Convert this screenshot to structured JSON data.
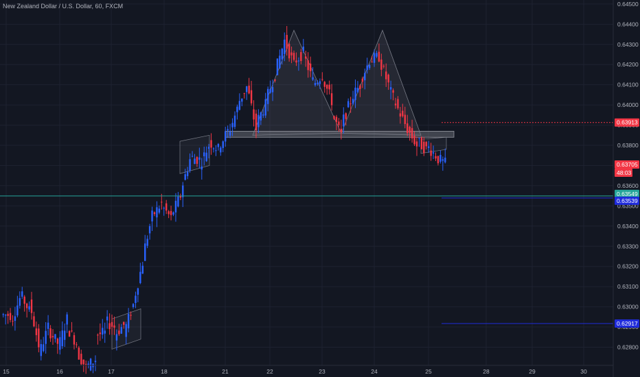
{
  "chart_data": {
    "type": "candlestick",
    "title": "New Zealand Dollar / U.S. Dollar, 60, FXCM",
    "xlabel": "",
    "ylabel": "",
    "ylim": [
      0.6271,
      0.6452
    ],
    "grid": true,
    "x_tick_labels": [
      "15",
      "16",
      "17",
      "18",
      "21",
      "22",
      "23",
      "24",
      "25",
      "28",
      "29",
      "30"
    ],
    "y_tick_labels": [
      "0.64500",
      "0.64400",
      "0.64300",
      "0.64200",
      "0.64100",
      "0.64000",
      "0.63900",
      "0.63800",
      "0.63700",
      "0.63600",
      "0.63500",
      "0.63400",
      "0.63300",
      "0.63200",
      "0.63100",
      "0.63000",
      "0.62900",
      "0.62800"
    ],
    "y_tick_values": [
      0.645,
      0.644,
      0.643,
      0.642,
      0.641,
      0.64,
      0.639,
      0.638,
      0.637,
      0.636,
      0.635,
      0.634,
      0.633,
      0.632,
      0.631,
      0.63,
      0.629,
      0.628
    ],
    "colors": {
      "background": "#131722",
      "up": "#2962ff",
      "down": "#f23645",
      "grid": "#1e2230",
      "neckline": "#9598a1",
      "level_teal": "#26a69a",
      "level_red": "#f23645",
      "level_blue": "#1f2bdb",
      "price_axis_bg": "#131722"
    },
    "price_path": [
      [
        0.6296,
        0.6296
      ],
      [
        0.6292,
        0.6304
      ],
      [
        0.6307,
        0.6298
      ],
      [
        0.6303,
        0.6281
      ],
      [
        0.6276,
        0.629
      ],
      [
        0.6289,
        0.6282
      ],
      [
        0.6279,
        0.6294
      ],
      [
        0.629,
        0.6282
      ],
      [
        0.6278,
        0.627
      ],
      [
        0.627,
        0.6274
      ],
      [
        0.6286,
        0.6287
      ],
      [
        0.6293,
        0.629
      ],
      [
        0.6286,
        0.6291
      ],
      [
        0.6287,
        0.6301
      ],
      [
        0.6302,
        0.6322
      ],
      [
        0.6325,
        0.6345
      ],
      [
        0.6345,
        0.6351
      ],
      [
        0.635,
        0.6344
      ],
      [
        0.6345,
        0.6355
      ],
      [
        0.6357,
        0.6373
      ],
      [
        0.6374,
        0.6373
      ],
      [
        0.637,
        0.638
      ],
      [
        0.6382,
        0.6378
      ],
      [
        0.6379,
        0.6387
      ],
      [
        0.6385,
        0.6398
      ],
      [
        0.64,
        0.6409
      ],
      [
        0.641,
        0.6388
      ],
      [
        0.6391,
        0.64
      ],
      [
        0.6402,
        0.6415
      ],
      [
        0.6416,
        0.6432
      ],
      [
        0.6432,
        0.642
      ],
      [
        0.6421,
        0.6426
      ],
      [
        0.6425,
        0.6412
      ],
      [
        0.641,
        0.6415
      ],
      [
        0.6414,
        0.6402
      ],
      [
        0.6396,
        0.6385
      ],
      [
        0.639,
        0.6402
      ],
      [
        0.6403,
        0.641
      ],
      [
        0.6412,
        0.6422
      ],
      [
        0.6422,
        0.6424
      ],
      [
        0.6423,
        0.641
      ],
      [
        0.6409,
        0.6398
      ],
      [
        0.6398,
        0.6388
      ],
      [
        0.6388,
        0.638
      ],
      [
        0.6382,
        0.6378
      ],
      [
        0.638,
        0.6375
      ],
      [
        0.6374,
        0.6371
      ]
    ],
    "price_tags": [
      {
        "label": "0.63913",
        "value": 0.63913,
        "color": "#f23645"
      },
      {
        "label": "0.63705",
        "value": 0.63705,
        "color": "#f23645"
      },
      {
        "label": "48:03",
        "value": 0.63705,
        "color": "#f23645"
      },
      {
        "label": "0.63549",
        "value": 0.63549,
        "color": "#26a69a"
      },
      {
        "label": "0.63539",
        "value": 0.63539,
        "color": "#1f2bdb"
      },
      {
        "label": "0.62917",
        "value": 0.62917,
        "color": "#1f2bdb"
      }
    ],
    "horizontal_levels": [
      {
        "value": 0.63549,
        "style": "solid",
        "color": "#26a69a",
        "span": "full"
      },
      {
        "value": 0.63539,
        "style": "solid",
        "color": "#1f2bdb",
        "span": "right"
      },
      {
        "value": 0.63913,
        "style": "dotted",
        "color": "#f23645",
        "span": "right"
      },
      {
        "value": 0.62917,
        "style": "solid",
        "color": "#1f2bdb",
        "span": "right"
      }
    ],
    "neckline_zone": [
      0.6384,
      0.6387
    ],
    "pattern": {
      "name": "",
      "points": [
        [
          0.6385
        ],
        [
          0.6437
        ],
        [
          0.6386
        ],
        [
          0.6437
        ],
        [
          0.6385
        ]
      ]
    }
  }
}
